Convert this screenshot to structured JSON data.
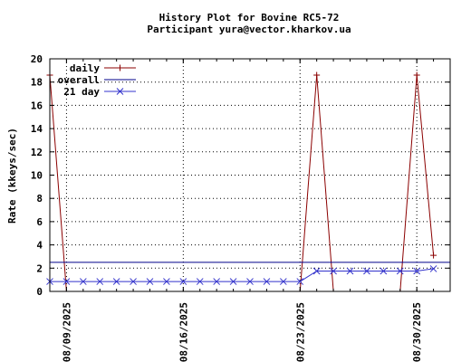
{
  "chart_data": {
    "type": "line",
    "title": "History Plot for Bovine RC5-72",
    "subtitle": "Participant yura@vector.kharkov.ua",
    "xlabel": "",
    "ylabel": "Rate (kkeys/sec)",
    "ylim": [
      0,
      20
    ],
    "yticks": [
      "0",
      "2",
      "4",
      "6",
      "8",
      "10",
      "12",
      "14",
      "16",
      "18",
      "20"
    ],
    "xlim": [
      "2025-08-08",
      "2025-09-01"
    ],
    "xticks": [
      {
        "date": "2025-08-09",
        "label": "08/09/2025"
      },
      {
        "date": "2025-08-16",
        "label": "08/16/2025"
      },
      {
        "date": "2025-08-23",
        "label": "08/23/2025"
      },
      {
        "date": "2025-08-30",
        "label": "08/30/2025"
      }
    ],
    "grid": true,
    "legend_position": "top-left",
    "series": [
      {
        "name": "daily",
        "color": "#8b0000",
        "marker": "plus",
        "points": [
          {
            "x": "2025-08-08",
            "y": 18.6
          },
          {
            "x": "2025-08-09",
            "y": 0
          },
          {
            "x": "2025-08-10",
            "y": 0
          },
          {
            "x": "2025-08-11",
            "y": 0
          },
          {
            "x": "2025-08-12",
            "y": 0
          },
          {
            "x": "2025-08-13",
            "y": 0
          },
          {
            "x": "2025-08-14",
            "y": 0
          },
          {
            "x": "2025-08-15",
            "y": 0
          },
          {
            "x": "2025-08-16",
            "y": 0
          },
          {
            "x": "2025-08-17",
            "y": 0
          },
          {
            "x": "2025-08-18",
            "y": 0
          },
          {
            "x": "2025-08-19",
            "y": 0
          },
          {
            "x": "2025-08-20",
            "y": 0
          },
          {
            "x": "2025-08-21",
            "y": 0
          },
          {
            "x": "2025-08-22",
            "y": 0
          },
          {
            "x": "2025-08-23",
            "y": 0
          },
          {
            "x": "2025-08-24",
            "y": 18.6
          },
          {
            "x": "2025-08-25",
            "y": 0
          },
          {
            "x": "2025-08-26",
            "y": 0
          },
          {
            "x": "2025-08-27",
            "y": 0
          },
          {
            "x": "2025-08-28",
            "y": 0
          },
          {
            "x": "2025-08-29",
            "y": 0
          },
          {
            "x": "2025-08-30",
            "y": 18.6
          },
          {
            "x": "2025-08-31",
            "y": 3.1
          }
        ]
      },
      {
        "name": "overall",
        "color": "#00008b",
        "marker": "none",
        "points": [
          {
            "x": "2025-08-08",
            "y": 2.5
          },
          {
            "x": "2025-09-01",
            "y": 2.5
          }
        ]
      },
      {
        "name": "21 day",
        "color": "#3333cc",
        "marker": "cross",
        "points": [
          {
            "x": "2025-08-08",
            "y": 0.85
          },
          {
            "x": "2025-08-09",
            "y": 0.85
          },
          {
            "x": "2025-08-10",
            "y": 0.85
          },
          {
            "x": "2025-08-11",
            "y": 0.85
          },
          {
            "x": "2025-08-12",
            "y": 0.85
          },
          {
            "x": "2025-08-13",
            "y": 0.85
          },
          {
            "x": "2025-08-14",
            "y": 0.85
          },
          {
            "x": "2025-08-15",
            "y": 0.85
          },
          {
            "x": "2025-08-16",
            "y": 0.85
          },
          {
            "x": "2025-08-17",
            "y": 0.85
          },
          {
            "x": "2025-08-18",
            "y": 0.85
          },
          {
            "x": "2025-08-19",
            "y": 0.85
          },
          {
            "x": "2025-08-20",
            "y": 0.85
          },
          {
            "x": "2025-08-21",
            "y": 0.85
          },
          {
            "x": "2025-08-22",
            "y": 0.85
          },
          {
            "x": "2025-08-23",
            "y": 0.85
          },
          {
            "x": "2025-08-24",
            "y": 1.75
          },
          {
            "x": "2025-08-25",
            "y": 1.75
          },
          {
            "x": "2025-08-26",
            "y": 1.75
          },
          {
            "x": "2025-08-27",
            "y": 1.75
          },
          {
            "x": "2025-08-28",
            "y": 1.75
          },
          {
            "x": "2025-08-29",
            "y": 1.75
          },
          {
            "x": "2025-08-30",
            "y": 1.75
          },
          {
            "x": "2025-08-31",
            "y": 1.95
          }
        ]
      }
    ]
  }
}
